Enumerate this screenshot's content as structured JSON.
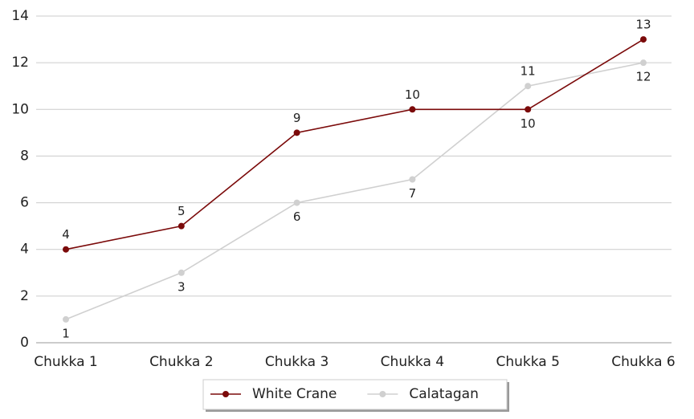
{
  "chart_data": {
    "type": "line",
    "categories": [
      "Chukka 1",
      "Chukka 2",
      "Chukka 3",
      "Chukka 4",
      "Chukka 5",
      "Chukka 6"
    ],
    "series": [
      {
        "name": "White Crane",
        "color": "#7b0a0a",
        "values": [
          4,
          5,
          9,
          10,
          10,
          13
        ]
      },
      {
        "name": "Calatagan",
        "color": "#d0d0d0",
        "values": [
          1,
          3,
          6,
          7,
          11,
          12
        ]
      }
    ],
    "ylim": [
      0,
      14
    ],
    "yticks": [
      0,
      2,
      4,
      6,
      8,
      10,
      12,
      14
    ],
    "grid": true,
    "legend": "bottom"
  }
}
